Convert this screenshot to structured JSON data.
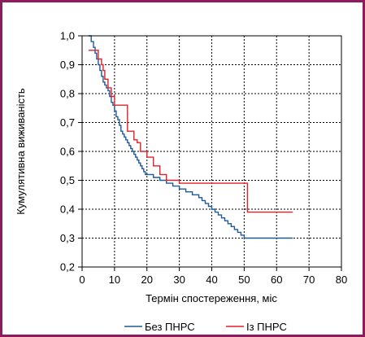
{
  "chart_data": {
    "type": "line",
    "step": true,
    "xlabel": "Термін спостереження, міс",
    "ylabel": "Кумулятивна виживаність",
    "xlim": [
      0,
      80
    ],
    "ylim": [
      0.2,
      1.0
    ],
    "xticks": [
      0,
      10,
      20,
      30,
      40,
      50,
      60,
      70,
      80
    ],
    "yticks": [
      0.2,
      0.3,
      0.4,
      0.5,
      0.6,
      0.7,
      0.8,
      0.9,
      1.0
    ],
    "ytick_labels": [
      "0,2",
      "0,3",
      "0,4",
      "0,5",
      "0,6",
      "0,7",
      "0,8",
      "0,9",
      "1,0"
    ],
    "grid": true,
    "legend_position": "bottom",
    "series": [
      {
        "name": "Без ПНРС",
        "color": "#1f5a96",
        "x": [
          2,
          2.8,
          3.5,
          4,
          4.5,
          5,
          5.5,
          6,
          6.5,
          7,
          7.5,
          8,
          8.5,
          9,
          9.5,
          10,
          10.5,
          11,
          11.5,
          12,
          12.5,
          13,
          13.5,
          14,
          14.5,
          15,
          15.5,
          16,
          16.5,
          17,
          17.5,
          18,
          18.5,
          19,
          19.5,
          20,
          22,
          24,
          26,
          28,
          30,
          32,
          34,
          36,
          37,
          38,
          39,
          40,
          41,
          42,
          43,
          44,
          45,
          46,
          47,
          48,
          49,
          50,
          51,
          53,
          55,
          57,
          59,
          61,
          63,
          65
        ],
        "y": [
          1.0,
          0.98,
          0.96,
          0.94,
          0.92,
          0.9,
          0.88,
          0.86,
          0.84,
          0.83,
          0.82,
          0.81,
          0.79,
          0.77,
          0.76,
          0.74,
          0.72,
          0.71,
          0.69,
          0.67,
          0.66,
          0.65,
          0.64,
          0.63,
          0.62,
          0.61,
          0.6,
          0.59,
          0.58,
          0.57,
          0.56,
          0.55,
          0.54,
          0.53,
          0.52,
          0.52,
          0.51,
          0.5,
          0.49,
          0.48,
          0.47,
          0.46,
          0.45,
          0.44,
          0.43,
          0.42,
          0.41,
          0.4,
          0.39,
          0.38,
          0.37,
          0.36,
          0.35,
          0.34,
          0.33,
          0.32,
          0.31,
          0.3,
          0.3,
          0.3,
          0.3,
          0.3,
          0.3,
          0.3,
          0.3,
          0.3
        ]
      },
      {
        "name": "Із ПНРС",
        "color": "#e0202a",
        "x": [
          2,
          3,
          5,
          6,
          6.5,
          7,
          8,
          9,
          10,
          12,
          14,
          16,
          17,
          18,
          20,
          22,
          24,
          26,
          28,
          30,
          33,
          36,
          40,
          45,
          51,
          55,
          60,
          65
        ],
        "y": [
          0.95,
          0.95,
          0.92,
          0.9,
          0.88,
          0.85,
          0.82,
          0.79,
          0.76,
          0.76,
          0.67,
          0.64,
          0.63,
          0.6,
          0.58,
          0.55,
          0.52,
          0.5,
          0.5,
          0.49,
          0.49,
          0.49,
          0.49,
          0.49,
          0.39,
          0.39,
          0.39,
          0.39
        ]
      }
    ]
  }
}
